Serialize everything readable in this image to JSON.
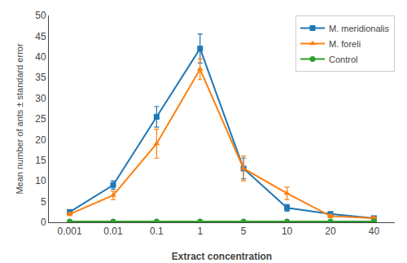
{
  "chart_data": {
    "type": "line",
    "xlabel": "Extract concentration",
    "ylabel": "Mean number of ants ± standard error",
    "categories": [
      "0.001",
      "0.01",
      "0.1",
      "1",
      "5",
      "10",
      "20",
      "40"
    ],
    "series": [
      {
        "name": "M. meridionalis",
        "marker": "square",
        "values": [
          2.5,
          9.0,
          25.5,
          42.0,
          13.0,
          3.5,
          2.0,
          1.0
        ],
        "errors": [
          0.5,
          1.0,
          2.5,
          3.5,
          2.5,
          0.8,
          0.5,
          0.3
        ]
      },
      {
        "name": "M. foreli",
        "marker": "triangle-up",
        "values": [
          2.0,
          6.5,
          19.0,
          37.0,
          13.0,
          7.0,
          1.5,
          1.0
        ],
        "errors": [
          0.4,
          1.0,
          3.5,
          2.5,
          3.0,
          1.5,
          0.4,
          0.3
        ]
      },
      {
        "name": "Control",
        "marker": "circle",
        "values": [
          0.2,
          0.2,
          0.2,
          0.2,
          0.2,
          0.2,
          0.2,
          0.2
        ],
        "errors": [
          0.05,
          0.05,
          0.05,
          0.05,
          0.05,
          0.05,
          0.05,
          0.05
        ]
      }
    ],
    "ylim": [
      0,
      50
    ],
    "yticks": [
      0,
      5,
      10,
      15,
      20,
      25,
      30,
      35,
      40,
      45,
      50
    ],
    "grid": false,
    "legend": "upper right"
  }
}
